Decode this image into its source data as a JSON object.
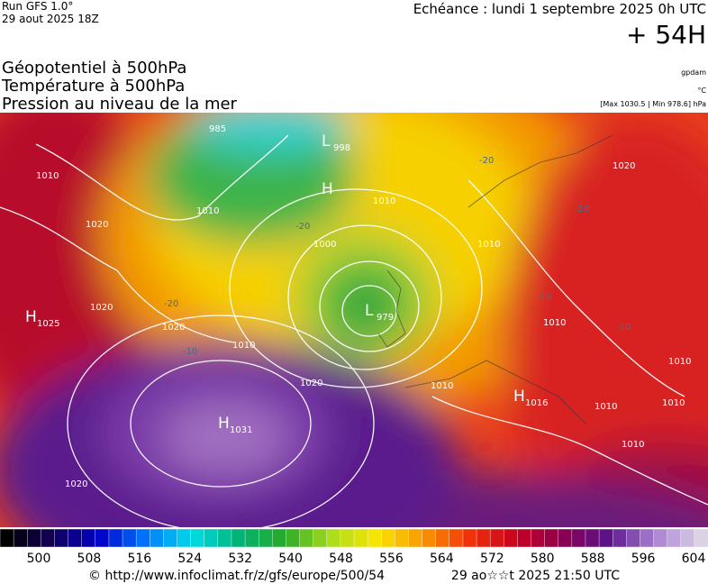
{
  "header": {
    "run": "Run GFS 1.0°",
    "date": "29 aout 2025 18Z",
    "valid": "Echéance : lundi 1 septembre 2025 0h UTC",
    "lead": "+ 54H"
  },
  "titles": [
    "Géopotentiel à 500hPa",
    "Température à 500hPa",
    "Pression au niveau de la mer"
  ],
  "units": [
    "gpdam",
    "°C",
    "[Max 1030.5 | Min 978.6] hPa"
  ],
  "centers": [
    {
      "letter": "H",
      "value": "1025"
    },
    {
      "letter": "L",
      "value": "998"
    },
    {
      "letter": "H"
    },
    {
      "letter": "L",
      "value": "979"
    },
    {
      "letter": "H",
      "value": "1031"
    },
    {
      "letter": "H",
      "value": "1016"
    }
  ],
  "isobar_labels": [
    "985",
    "1010",
    "1020",
    "1010",
    "1020",
    "1010",
    "1020",
    "1010",
    "1000",
    "1010",
    "1010",
    "1010",
    "1010",
    "1010",
    "1020",
    "1010",
    "1010",
    "1020",
    "1020"
  ],
  "temperature_labels": [
    "-20",
    "-10",
    "-20",
    "-20",
    "-10",
    "-20",
    "-10"
  ],
  "colorbar": {
    "labels": [
      500,
      508,
      516,
      524,
      532,
      540,
      548,
      556,
      564,
      572,
      580,
      588,
      596,
      604
    ]
  },
  "footer": {
    "source": "© http://www.infoclimat.fr/z/gfs/europe/500/54",
    "generated": "29 ao☆☆t 2025 21:50 UTC"
  }
}
